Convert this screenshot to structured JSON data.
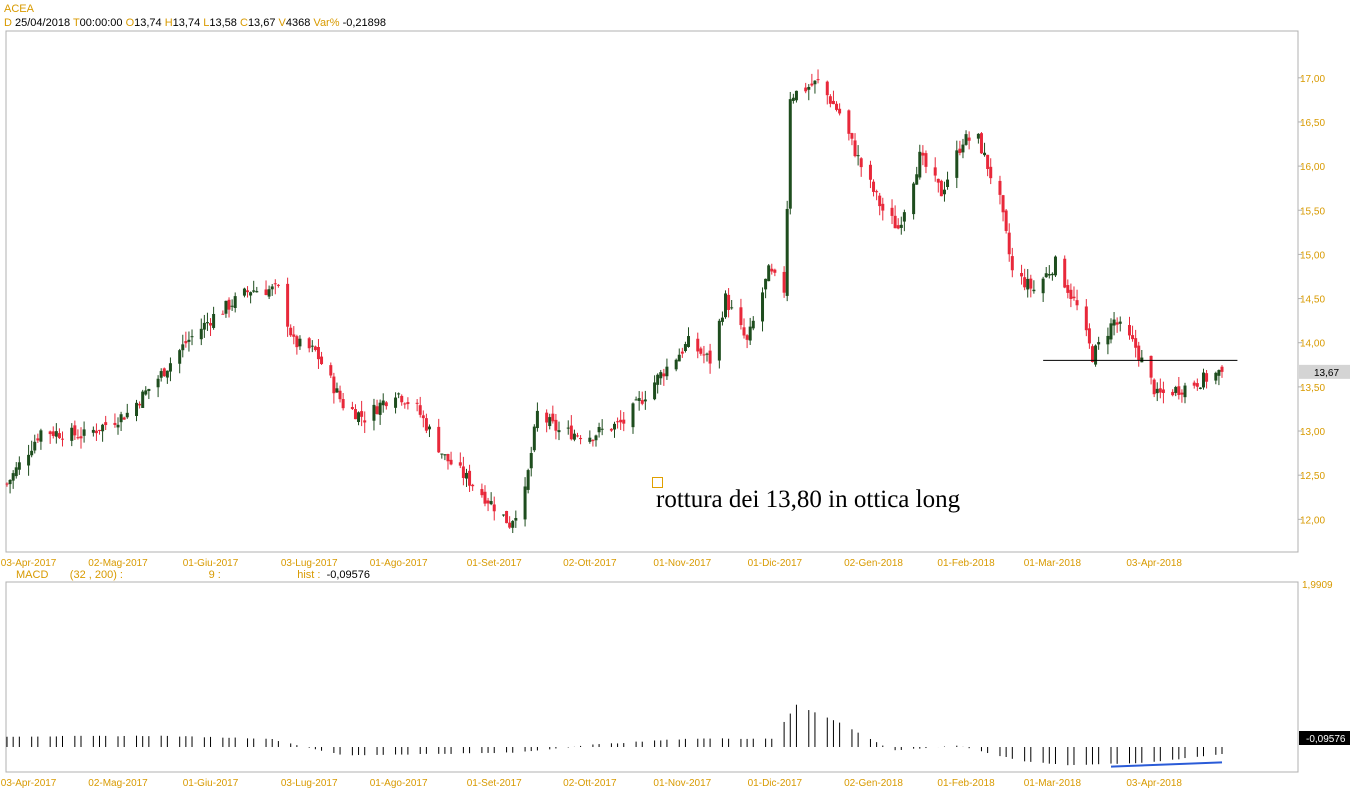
{
  "instrument": "ACEA",
  "ohlc_header": {
    "date_key": "D",
    "date": "25/04/2018",
    "time_key": "T",
    "time": "00:00:00",
    "open_key": "O",
    "open": "13,74",
    "high_key": "H",
    "high": "13,74",
    "low_key": "L",
    "low": "13,58",
    "close_key": "C",
    "close": "13,67",
    "volume_key": "V",
    "volume": "4368",
    "var_key": "Var%",
    "var": "-0,21898"
  },
  "annotation": "rottura dei 13,80 in ottica long",
  "macd_header": {
    "name": "MACD",
    "params": "(32 , 200) :",
    "signal": "9 :",
    "hist_key": "hist :",
    "hist": "-0,09576"
  },
  "colors": {
    "up": "#1e4d1e",
    "down": "#e8283a",
    "axis_text": "#d89a00",
    "macd_bar": "#000000",
    "macd_signal": "#2a5bd7",
    "last_price_box": "#d4d4d4"
  },
  "chart_data": [
    {
      "type": "candlestick",
      "title": "ACEA",
      "x_tick_labels": [
        "03-Apr-2017",
        "02-Mag-2017",
        "01-Giu-2017",
        "03-Lug-2017",
        "01-Ago-2017",
        "01-Set-2017",
        "02-Ott-2017",
        "01-Nov-2017",
        "01-Dic-2017",
        "02-Gen-2018",
        "01-Feb-2018",
        "01-Mar-2018",
        "03-Apr-2018"
      ],
      "x_range": [
        "2017-03-27",
        "2018-04-25"
      ],
      "y_tick_labels": [
        "12,00",
        "12,50",
        "13,00",
        "13,50",
        "14,00",
        "14,50",
        "15,00",
        "15,50",
        "16,00",
        "16,50",
        "17,00"
      ],
      "ylim": [
        11.63,
        17.53
      ],
      "last_price": 13.67,
      "last_price_label": "13,67",
      "support_line": {
        "value": 13.8,
        "from": "2018-02-26",
        "to": "2018-04-30"
      },
      "close_path": [
        [
          "2017-03-27",
          12.4
        ],
        [
          "2017-04-07",
          13.0
        ],
        [
          "2017-04-21",
          12.95
        ],
        [
          "2017-05-05",
          13.2
        ],
        [
          "2017-05-15",
          13.6
        ],
        [
          "2017-05-24",
          14.0
        ],
        [
          "2017-06-02",
          14.3
        ],
        [
          "2017-06-14",
          14.6
        ],
        [
          "2017-06-23",
          14.6
        ],
        [
          "2017-06-28",
          14.0
        ],
        [
          "2017-07-05",
          13.9
        ],
        [
          "2017-07-14",
          13.3
        ],
        [
          "2017-07-21",
          13.15
        ],
        [
          "2017-07-31",
          13.45
        ],
        [
          "2017-08-07",
          13.25
        ],
        [
          "2017-08-16",
          12.7
        ],
        [
          "2017-08-25",
          12.4
        ],
        [
          "2017-09-01",
          12.15
        ],
        [
          "2017-09-06",
          11.95
        ],
        [
          "2017-09-11",
          12.3
        ],
        [
          "2017-09-15",
          13.2
        ],
        [
          "2017-09-22",
          13.0
        ],
        [
          "2017-10-02",
          12.95
        ],
        [
          "2017-10-13",
          13.1
        ],
        [
          "2017-10-24",
          13.6
        ],
        [
          "2017-11-03",
          14.0
        ],
        [
          "2017-11-10",
          13.8
        ],
        [
          "2017-11-15",
          14.5
        ],
        [
          "2017-11-22",
          14.0
        ],
        [
          "2017-11-29",
          14.8
        ],
        [
          "2017-12-04",
          14.6
        ],
        [
          "2017-12-05",
          15.55
        ],
        [
          "2017-12-06",
          16.8
        ],
        [
          "2017-12-15",
          16.95
        ],
        [
          "2017-12-22",
          16.6
        ],
        [
          "2017-12-29",
          16.0
        ],
        [
          "2018-01-05",
          15.5
        ],
        [
          "2018-01-10",
          15.3
        ],
        [
          "2018-01-17",
          16.1
        ],
        [
          "2018-01-24",
          15.7
        ],
        [
          "2018-01-31",
          16.3
        ],
        [
          "2018-02-05",
          16.3
        ],
        [
          "2018-02-12",
          15.6
        ],
        [
          "2018-02-16",
          14.8
        ],
        [
          "2018-02-23",
          14.6
        ],
        [
          "2018-03-02",
          14.9
        ],
        [
          "2018-03-09",
          14.4
        ],
        [
          "2018-03-14",
          13.85
        ],
        [
          "2018-03-21",
          14.25
        ],
        [
          "2018-03-28",
          13.95
        ],
        [
          "2018-04-04",
          13.4
        ],
        [
          "2018-04-13",
          13.5
        ],
        [
          "2018-04-25",
          13.67
        ]
      ]
    },
    {
      "type": "bar",
      "title": "MACD (32 , 200)",
      "y_tick_labels": [
        "1,9909"
      ],
      "last_value_label": "-0,09576",
      "histogram_path": [
        [
          "2017-03-27",
          0.15
        ],
        [
          "2017-05-15",
          0.16
        ],
        [
          "2017-06-20",
          0.12
        ],
        [
          "2017-07-14",
          -0.12
        ],
        [
          "2017-08-10",
          -0.1
        ],
        [
          "2017-09-08",
          -0.08
        ],
        [
          "2017-10-02",
          0.03
        ],
        [
          "2017-11-03",
          0.12
        ],
        [
          "2017-11-30",
          0.12
        ],
        [
          "2017-12-08",
          0.6
        ],
        [
          "2017-12-22",
          0.35
        ],
        [
          "2018-01-08",
          -0.05
        ],
        [
          "2018-01-29",
          0.02
        ],
        [
          "2018-02-19",
          -0.2
        ],
        [
          "2018-03-07",
          -0.26
        ],
        [
          "2018-04-02",
          -0.22
        ],
        [
          "2018-04-25",
          -0.1
        ]
      ],
      "signal_path": [
        [
          "2018-03-20",
          -0.28
        ],
        [
          "2018-04-25",
          -0.22
        ]
      ]
    }
  ]
}
